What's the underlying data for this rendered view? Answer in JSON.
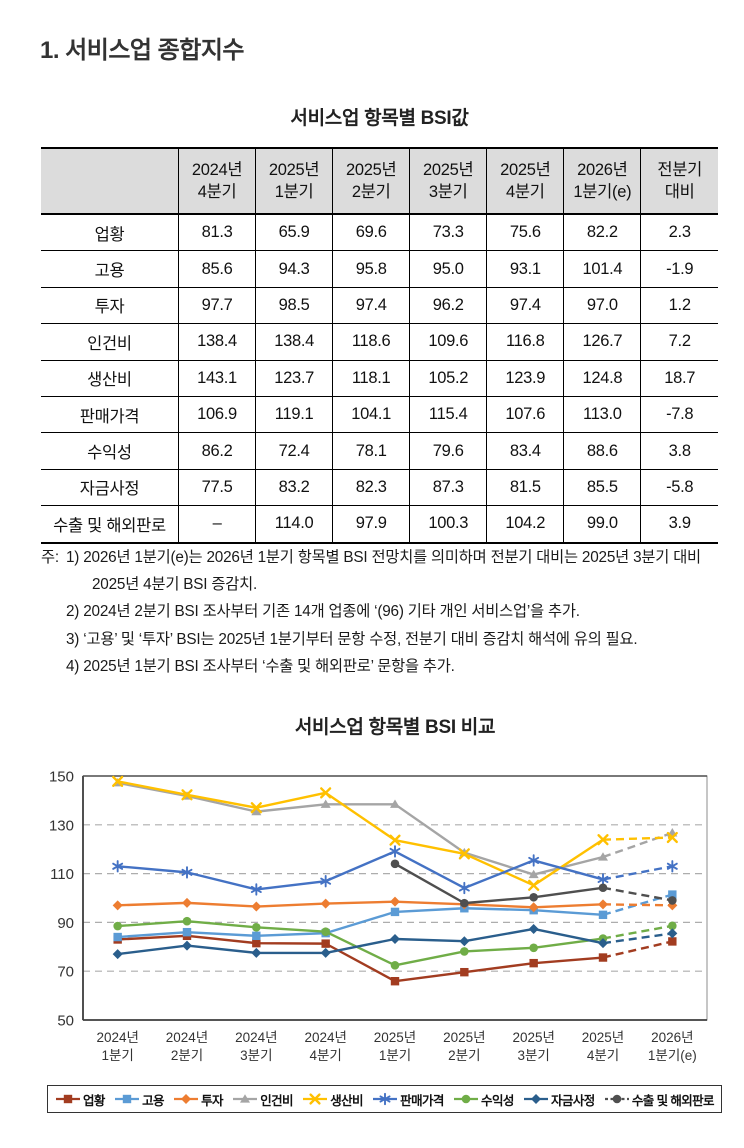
{
  "page": {
    "title": "1. 서비스업 종합지수"
  },
  "table": {
    "title": "서비스업 항목별 BSI값",
    "corner": "",
    "columns": [
      "2024년\n4분기",
      "2025년\n1분기",
      "2025년\n2분기",
      "2025년\n3분기",
      "2025년\n4분기",
      "2026년\n1분기(e)",
      "전분기\n대비"
    ],
    "rows": [
      {
        "label": "업황",
        "values": [
          "81.3",
          "65.9",
          "69.6",
          "73.3",
          "75.6",
          "82.2",
          "2.3"
        ]
      },
      {
        "label": "고용",
        "values": [
          "85.6",
          "94.3",
          "95.8",
          "95.0",
          "93.1",
          "101.4",
          "-1.9"
        ]
      },
      {
        "label": "투자",
        "values": [
          "97.7",
          "98.5",
          "97.4",
          "96.2",
          "97.4",
          "97.0",
          "1.2"
        ]
      },
      {
        "label": "인건비",
        "values": [
          "138.4",
          "138.4",
          "118.6",
          "109.6",
          "116.8",
          "126.7",
          "7.2"
        ]
      },
      {
        "label": "생산비",
        "values": [
          "143.1",
          "123.7",
          "118.1",
          "105.2",
          "123.9",
          "124.8",
          "18.7"
        ]
      },
      {
        "label": "판매가격",
        "values": [
          "106.9",
          "119.1",
          "104.1",
          "115.4",
          "107.6",
          "113.0",
          "-7.8"
        ]
      },
      {
        "label": "수익성",
        "values": [
          "86.2",
          "72.4",
          "78.1",
          "79.6",
          "83.4",
          "88.6",
          "3.8"
        ]
      },
      {
        "label": "자금사정",
        "values": [
          "77.5",
          "83.2",
          "82.3",
          "87.3",
          "81.5",
          "85.5",
          "-5.8"
        ]
      },
      {
        "label": "수출 및 해외판로",
        "values": [
          "–",
          "114.0",
          "97.9",
          "100.3",
          "104.2",
          "99.0",
          "3.9"
        ]
      }
    ]
  },
  "notes": {
    "prefix": "주:",
    "items": [
      "1) 2026년 1분기(e)는 2026년 1분기 항목별 BSI 전망치를 의미하며 전분기 대비는 2025년 3분기 대비 2025년 4분기 BSI 증감치.",
      "2) 2024년 2분기 BSI 조사부터 기존 14개 업종에 ‘(96) 기타 개인 서비스업’을 추가.",
      "3) ‘고용’ 및 ‘투자’ BSI는 2025년 1분기부터 문항 수정, 전분기 대비 증감치 해석에 유의 필요.",
      "4) 2025년 1분기 BSI 조사부터 ‘수출 및 해외판로’ 문항을 추가."
    ]
  },
  "chart_data": {
    "type": "line",
    "title": "서비스업 항목별 BSI 비교",
    "xlabel": "",
    "ylabel": "",
    "categories": [
      "2024년\n1분기",
      "2024년\n2분기",
      "2024년\n3분기",
      "2024년\n4분기",
      "2025년\n1분기",
      "2025년\n2분기",
      "2025년\n3분기",
      "2025년\n4분기",
      "2026년\n1분기(e)"
    ],
    "ylim": [
      50,
      150
    ],
    "yticks": [
      150,
      130,
      110,
      90,
      70,
      50
    ],
    "grid_yvalues": [
      70,
      90,
      110,
      130
    ],
    "grid_style": "dashed",
    "legend_position": "bottom",
    "forecast_from_index": 7,
    "series": [
      {
        "name": "업황",
        "color": "#A23C20",
        "marker": "square",
        "values": [
          83,
          84.5,
          81.5,
          81.3,
          65.9,
          69.6,
          73.3,
          75.6,
          82.2
        ]
      },
      {
        "name": "고용",
        "color": "#5B9BD5",
        "marker": "square",
        "values": [
          84,
          86,
          84.5,
          85.6,
          94.3,
          95.8,
          95.0,
          93.1,
          101.4
        ]
      },
      {
        "name": "투자",
        "color": "#ED7D31",
        "marker": "diamond",
        "values": [
          97,
          98,
          96.5,
          97.7,
          98.5,
          97.4,
          96.2,
          97.4,
          97.0
        ]
      },
      {
        "name": "인건비",
        "color": "#A5A5A5",
        "marker": "triangle",
        "values": [
          147.2,
          141.8,
          135.4,
          138.4,
          138.4,
          118.6,
          109.6,
          116.8,
          126.7
        ]
      },
      {
        "name": "생산비",
        "color": "#FFC000",
        "marker": "x",
        "values": [
          147.8,
          142.3,
          137.0,
          143.1,
          123.7,
          118.1,
          105.2,
          123.9,
          124.8
        ]
      },
      {
        "name": "판매가격",
        "color": "#4472C4",
        "marker": "asterisk",
        "values": [
          113,
          110.5,
          103.5,
          106.9,
          119.1,
          104.1,
          115.4,
          107.6,
          113.0
        ]
      },
      {
        "name": "수익성",
        "color": "#70AD47",
        "marker": "circle",
        "values": [
          88.5,
          90.5,
          88,
          86.2,
          72.4,
          78.1,
          79.6,
          83.4,
          88.6
        ]
      },
      {
        "name": "자금사정",
        "color": "#2A5E8C",
        "marker": "diamond",
        "values": [
          77,
          80.5,
          77.5,
          77.5,
          83.2,
          82.3,
          87.3,
          81.5,
          85.5
        ]
      },
      {
        "name": "수출 및 해외판로",
        "color": "#4F4F4F",
        "marker": "circle",
        "dashed_legend": true,
        "values": [
          null,
          null,
          null,
          null,
          114.0,
          97.9,
          100.3,
          104.2,
          99.0
        ]
      }
    ]
  }
}
